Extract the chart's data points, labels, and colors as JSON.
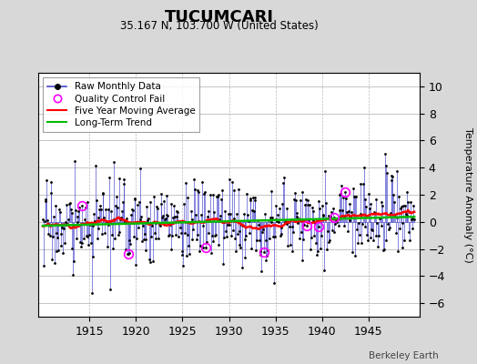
{
  "title": "TUCUMCARI",
  "subtitle": "35.167 N, 103.700 W (United States)",
  "ylabel": "Temperature Anomaly (°C)",
  "credit": "Berkeley Earth",
  "ylim": [
    -7,
    11
  ],
  "yticks": [
    -6,
    -4,
    -2,
    0,
    2,
    4,
    6,
    8,
    10
  ],
  "year_start": 1910,
  "year_end": 1949,
  "xticks": [
    1915,
    1920,
    1925,
    1930,
    1935,
    1940,
    1945
  ],
  "raw_color": "#4444cc",
  "dot_color": "#000000",
  "moving_avg_color": "#ff0000",
  "trend_color": "#00bb00",
  "qc_fail_color": "#ff00ff",
  "background_color": "#d8d8d8",
  "plot_bg_color": "#ffffff",
  "grid_color": "#bbbbbb",
  "seed": 17
}
